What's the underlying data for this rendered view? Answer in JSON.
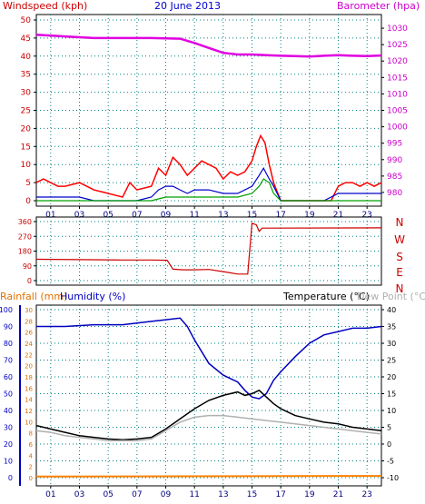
{
  "header": {
    "title": "20 June 2013",
    "left_label": "Windspeed (kph)",
    "right_label": "Barometer (hpa)"
  },
  "direction_labels": [
    "N",
    "W",
    "S",
    "E",
    "N"
  ],
  "bottom_header": {
    "rainfall_label": "Rainfall (mm)",
    "humidity_label": "Humidity (%)",
    "temperature_label": "Temperature (°C)",
    "dewpoint_label": "Dew Point (°C)"
  },
  "x_ticks": [
    "01",
    "03",
    "05",
    "07",
    "09",
    "11",
    "13",
    "15",
    "17",
    "19",
    "21",
    "23"
  ],
  "colors": {
    "wind_gust": "#ff0000",
    "wind_avg": "#0000cc",
    "wind_low": "#00a000",
    "barometer": "#e000e0",
    "direction": "#cc0000",
    "humidity": "#0000c0",
    "temperature": "#000000",
    "dewpoint": "#b0b0b0",
    "rainfall": "#ff8000",
    "title": "#0000cc",
    "left_label": "#cc0000",
    "right_label": "#cc00cc"
  },
  "chart_data": [
    {
      "type": "line",
      "name": "wind-barometer",
      "x_label": "hour",
      "xlim": [
        0,
        24
      ],
      "left_axis": {
        "ticks": [
          0,
          5,
          10,
          15,
          20,
          25,
          30,
          35,
          40,
          45,
          50
        ],
        "ylim": [
          0,
          50
        ]
      },
      "right_axis": {
        "ticks": [
          980,
          985,
          990,
          995,
          1000,
          1005,
          1010,
          1015,
          1020,
          1025,
          1030
        ],
        "ylim": [
          977.5,
          1032.5
        ]
      },
      "series": [
        {
          "name": "Barometer (hpa)",
          "axis": "right",
          "x": [
            0,
            2,
            4,
            6,
            8,
            10,
            11,
            12,
            13,
            14,
            15,
            16,
            17,
            18,
            19,
            20,
            21,
            22,
            23,
            24
          ],
          "values": [
            1028,
            1027.5,
            1027,
            1027,
            1027,
            1026.8,
            1025.5,
            1024,
            1022.5,
            1022,
            1022,
            1021.8,
            1021.6,
            1021.5,
            1021.4,
            1021.6,
            1021.8,
            1021.6,
            1021.5,
            1021.7
          ]
        },
        {
          "name": "Wind gust (kph)",
          "axis": "left",
          "x": [
            0,
            0.5,
            1,
            1.5,
            2,
            3,
            4,
            5,
            6,
            6.5,
            7,
            8,
            8.5,
            9,
            9.5,
            10,
            10.5,
            11,
            11.5,
            12,
            12.5,
            13,
            13.5,
            14,
            14.5,
            15,
            15.3,
            15.6,
            15.9,
            16.2,
            16.5,
            17,
            18,
            19,
            20,
            20.5,
            21,
            21.5,
            22,
            22.5,
            23,
            23.5,
            24
          ],
          "values": [
            5,
            6,
            5,
            4,
            4,
            5,
            3,
            2,
            1,
            5,
            3,
            4,
            9,
            7,
            12,
            10,
            7,
            9,
            11,
            10,
            9,
            6,
            8,
            7,
            8,
            11,
            15,
            18,
            16,
            10,
            5,
            0,
            0,
            0,
            0,
            0,
            4,
            5,
            5,
            4,
            5,
            4,
            5
          ]
        },
        {
          "name": "Wind average (kph)",
          "axis": "left",
          "x": [
            0,
            1,
            2,
            3,
            4,
            5,
            6,
            7,
            8,
            8.5,
            9,
            9.5,
            10,
            10.5,
            11,
            12,
            13,
            14,
            15,
            15.5,
            15.8,
            16.2,
            16.5,
            17,
            20,
            21,
            22,
            23,
            24
          ],
          "values": [
            1,
            1,
            1,
            1,
            0,
            0,
            0,
            0,
            1,
            3,
            4,
            4,
            3,
            2,
            3,
            3,
            2,
            2,
            4,
            7,
            9,
            6,
            4,
            0,
            0,
            2,
            2,
            2,
            2
          ]
        },
        {
          "name": "Wind low (kph)",
          "axis": "left",
          "x": [
            0,
            8,
            9,
            10,
            12,
            14,
            15,
            15.5,
            15.8,
            16.2,
            16.5,
            17,
            24
          ],
          "values": [
            0,
            0,
            1,
            1,
            1,
            1,
            2,
            4,
            6,
            5,
            2,
            0,
            0
          ]
        }
      ]
    },
    {
      "type": "line",
      "name": "wind-direction",
      "xlim": [
        0,
        24
      ],
      "ylim": [
        0,
        360
      ],
      "y_ticks": [
        0,
        90,
        180,
        270,
        360
      ],
      "series": [
        {
          "name": "Wind direction (deg)",
          "x": [
            0,
            3,
            6,
            8,
            9.1,
            9.5,
            10.2,
            11,
            12,
            13,
            14,
            14.6,
            14.7,
            15,
            15.3,
            15.5,
            15.7,
            16,
            24
          ],
          "values": [
            130,
            128,
            126,
            126,
            124,
            70,
            66,
            66,
            68,
            55,
            40,
            40,
            40,
            350,
            340,
            300,
            320,
            320,
            322
          ]
        }
      ]
    },
    {
      "type": "line",
      "name": "temp-humidity-rain",
      "xlim": [
        0,
        24
      ],
      "rain_axis": {
        "ticks": [
          0,
          2,
          4,
          6,
          8,
          10,
          12,
          14,
          16,
          18,
          20,
          22,
          24,
          26,
          28,
          30
        ],
        "ylim": [
          0,
          30
        ]
      },
      "humidity_axis": {
        "ticks": [
          0,
          10,
          20,
          30,
          40,
          50,
          60,
          70,
          80,
          90,
          100
        ],
        "ylim": [
          0,
          100
        ]
      },
      "temperature_axis": {
        "ticks": [
          -10,
          -5,
          0,
          5,
          10,
          15,
          20,
          25,
          30,
          35,
          40
        ],
        "ylim": [
          -10,
          40
        ]
      },
      "series": [
        {
          "name": "Humidity (%)",
          "axis": "humidity",
          "x": [
            0,
            2,
            4,
            5,
            6,
            7,
            8,
            9,
            10,
            10.5,
            11,
            12,
            13,
            13.5,
            14,
            14.5,
            15,
            15.5,
            16,
            16.5,
            17,
            18,
            19,
            20,
            21,
            22,
            23,
            24
          ],
          "values": [
            90,
            90,
            91,
            91,
            91,
            92,
            93,
            94,
            95,
            90,
            82,
            68,
            61,
            59,
            57,
            52,
            48,
            47,
            50,
            58,
            63,
            72,
            80,
            85,
            87,
            89,
            89,
            90
          ]
        },
        {
          "name": "Temperature (°C)",
          "axis": "temperature",
          "x": [
            0,
            1,
            2,
            3,
            4,
            5,
            6,
            7,
            8,
            9,
            10,
            11,
            12,
            13,
            14,
            14.5,
            15,
            15.5,
            16,
            16.5,
            17,
            18,
            19,
            20,
            21,
            22,
            23,
            24
          ],
          "values": [
            5.5,
            4.5,
            3.5,
            2.5,
            2,
            1.5,
            1.3,
            1.5,
            2,
            4.5,
            7.5,
            10.5,
            13,
            14.5,
            15.5,
            14.5,
            15,
            16,
            14,
            12,
            10.5,
            8.5,
            7.5,
            6.5,
            6,
            5,
            4.5,
            4
          ]
        },
        {
          "name": "Dew Point (°C)",
          "axis": "temperature",
          "x": [
            0,
            1,
            2,
            3,
            4,
            5,
            6,
            7,
            8,
            9,
            10,
            11,
            12,
            13,
            14,
            15,
            16,
            17,
            18,
            19,
            20,
            21,
            22,
            23,
            24
          ],
          "values": [
            4,
            3.5,
            2.5,
            2,
            1.5,
            1,
            1,
            1,
            1.5,
            4,
            6.5,
            8,
            8.5,
            8.5,
            8,
            7.5,
            7,
            6.5,
            6,
            5.5,
            5,
            4.5,
            4,
            3.5,
            3
          ]
        },
        {
          "name": "Rainfall (mm)",
          "axis": "rain",
          "x": [
            0,
            24
          ],
          "values": [
            0.2,
            0.3
          ]
        }
      ]
    }
  ]
}
